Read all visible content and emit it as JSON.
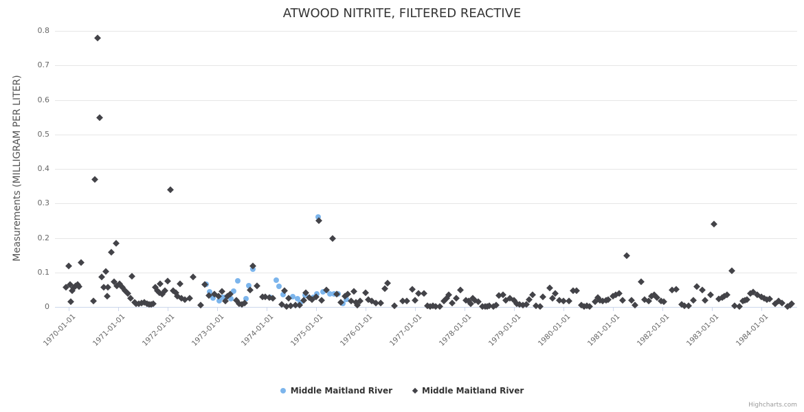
{
  "title": "ATWOOD NITRITE, FILTERED REACTIVE",
  "credit": "Highcharts.com",
  "y_axis": {
    "title": "Measurements (MILLIGRAM PER LITER)",
    "ticks": [
      "0",
      "0.1",
      "0.2",
      "0.3",
      "0.4",
      "0.5",
      "0.6",
      "0.7",
      "0.8"
    ]
  },
  "x_axis": {
    "tick_labels": [
      "1970-01-01",
      "1971-01-01",
      "1972-01-01",
      "1973-01-01",
      "1974-01-01",
      "1975-01-01",
      "1976-01-01",
      "1977-01-01",
      "1978-01-01",
      "1979-01-01",
      "1980-01-01",
      "1981-01-01",
      "1982-01-01",
      "1983-01-01",
      "1984-01-01"
    ]
  },
  "legend": [
    {
      "name": "Middle Maitland River",
      "marker": "circle",
      "color": "#7cb5ec"
    },
    {
      "name": "Middle Maitland River",
      "marker": "diamond",
      "color": "#434348"
    }
  ],
  "chart_data": {
    "type": "scatter",
    "title": "ATWOOD NITRITE, FILTERED REACTIVE",
    "xlabel": "",
    "ylabel": "Measurements (MILLIGRAM PER LITER)",
    "ylim": [
      0,
      0.8
    ],
    "x_range": [
      "1969-10",
      "1985-01"
    ],
    "grid": "horizontal",
    "legend_position": "bottom-center",
    "series": [
      {
        "name": "Middle Maitland River",
        "marker": "circle",
        "color": "#7cb5ec",
        "points": [
          [
            "1972-10-10",
            0.065
          ],
          [
            "1972-11-05",
            0.044
          ],
          [
            "1972-12-01",
            0.026
          ],
          [
            "1973-01-15",
            0.018
          ],
          [
            "1973-02-10",
            0.028
          ],
          [
            "1973-03-01",
            0.028
          ],
          [
            "1973-04-10",
            0.024
          ],
          [
            "1973-05-01",
            0.046
          ],
          [
            "1973-06-01",
            0.075
          ],
          [
            "1973-08-01",
            0.024
          ],
          [
            "1973-08-20",
            0.062
          ],
          [
            "1973-09-20",
            0.11
          ],
          [
            "1974-01-25",
            0.028
          ],
          [
            "1974-03-10",
            0.078
          ],
          [
            "1974-04-01",
            0.06
          ],
          [
            "1974-05-01",
            0.036
          ],
          [
            "1974-07-10",
            0.03
          ],
          [
            "1974-08-15",
            0.024
          ],
          [
            "1974-09-05",
            0.012
          ],
          [
            "1974-10-10",
            0.034
          ],
          [
            "1974-12-10",
            0.028
          ],
          [
            "1975-01-05",
            0.038
          ],
          [
            "1975-01-15",
            0.26
          ],
          [
            "1975-02-20",
            0.044
          ],
          [
            "1975-04-10",
            0.038
          ],
          [
            "1975-05-10",
            0.038
          ],
          [
            "1975-06-10",
            0.038
          ],
          [
            "1975-07-15",
            0.01
          ],
          [
            "1975-08-10",
            0.022
          ]
        ]
      },
      {
        "name": "Middle Maitland River",
        "marker": "diamond",
        "color": "#434348",
        "points": [
          [
            "1969-12-10",
            0.058
          ],
          [
            "1970-01-03",
            0.12
          ],
          [
            "1970-01-10",
            0.066
          ],
          [
            "1970-01-18",
            0.016
          ],
          [
            "1970-01-26",
            0.048
          ],
          [
            "1970-02-08",
            0.056
          ],
          [
            "1970-02-20",
            0.062
          ],
          [
            "1970-03-05",
            0.066
          ],
          [
            "1970-03-18",
            0.06
          ],
          [
            "1970-04-01",
            0.13
          ],
          [
            "1970-07-01",
            0.018
          ],
          [
            "1970-07-10",
            0.37
          ],
          [
            "1970-08-01",
            0.78
          ],
          [
            "1970-08-15",
            0.55
          ],
          [
            "1970-09-01",
            0.088
          ],
          [
            "1970-09-15",
            0.058
          ],
          [
            "1970-10-01",
            0.103
          ],
          [
            "1970-10-10",
            0.032
          ],
          [
            "1970-10-15",
            0.058
          ],
          [
            "1970-11-10",
            0.16
          ],
          [
            "1970-12-01",
            0.074
          ],
          [
            "1970-12-15",
            0.185
          ],
          [
            "1970-12-20",
            0.062
          ],
          [
            "1971-01-10",
            0.068
          ],
          [
            "1971-02-01",
            0.058
          ],
          [
            "1971-02-20",
            0.048
          ],
          [
            "1971-03-10",
            0.04
          ],
          [
            "1971-04-01",
            0.026
          ],
          [
            "1971-04-10",
            0.09
          ],
          [
            "1971-05-01",
            0.014
          ],
          [
            "1971-05-10",
            0.01
          ],
          [
            "1971-06-01",
            0.01
          ],
          [
            "1971-06-20",
            0.012
          ],
          [
            "1971-07-10",
            0.014
          ],
          [
            "1971-08-01",
            0.01
          ],
          [
            "1971-08-15",
            0.008
          ],
          [
            "1971-09-01",
            0.008
          ],
          [
            "1971-09-15",
            0.01
          ],
          [
            "1971-10-01",
            0.058
          ],
          [
            "1971-10-15",
            0.048
          ],
          [
            "1971-11-01",
            0.042
          ],
          [
            "1971-11-08",
            0.068
          ],
          [
            "1971-11-20",
            0.038
          ],
          [
            "1971-12-10",
            0.048
          ],
          [
            "1972-01-01",
            0.075
          ],
          [
            "1972-01-20",
            0.34
          ],
          [
            "1972-02-10",
            0.048
          ],
          [
            "1972-03-01",
            0.042
          ],
          [
            "1972-03-12",
            0.032
          ],
          [
            "1972-04-01",
            0.068
          ],
          [
            "1972-04-10",
            0.026
          ],
          [
            "1972-05-05",
            0.022
          ],
          [
            "1972-06-10",
            0.026
          ],
          [
            "1972-07-05",
            0.087
          ],
          [
            "1972-09-01",
            0.006
          ],
          [
            "1972-10-01",
            0.065
          ],
          [
            "1972-11-01",
            0.034
          ],
          [
            "1972-12-10",
            0.038
          ],
          [
            "1973-01-10",
            0.032
          ],
          [
            "1973-02-05",
            0.046
          ],
          [
            "1973-03-01",
            0.018
          ],
          [
            "1973-03-15",
            0.032
          ],
          [
            "1973-04-05",
            0.038
          ],
          [
            "1973-05-20",
            0.02
          ],
          [
            "1973-06-10",
            0.01
          ],
          [
            "1973-07-01",
            0.008
          ],
          [
            "1973-07-20",
            0.012
          ],
          [
            "1973-09-01",
            0.05
          ],
          [
            "1973-09-20",
            0.12
          ],
          [
            "1973-10-20",
            0.062
          ],
          [
            "1973-12-01",
            0.03
          ],
          [
            "1973-12-20",
            0.03
          ],
          [
            "1974-01-20",
            0.028
          ],
          [
            "1974-02-15",
            0.026
          ],
          [
            "1974-04-20",
            0.008
          ],
          [
            "1974-05-10",
            0.048
          ],
          [
            "1974-05-25",
            0.001
          ],
          [
            "1974-06-10",
            0.026
          ],
          [
            "1974-06-25",
            0.004
          ],
          [
            "1974-08-01",
            0.006
          ],
          [
            "1974-09-01",
            0.006
          ],
          [
            "1974-10-01",
            0.02
          ],
          [
            "1974-10-15",
            0.042
          ],
          [
            "1974-11-10",
            0.028
          ],
          [
            "1974-12-01",
            0.022
          ],
          [
            "1975-01-01",
            0.03
          ],
          [
            "1975-01-20",
            0.25
          ],
          [
            "1975-02-10",
            0.02
          ],
          [
            "1975-03-15",
            0.05
          ],
          [
            "1975-05-01",
            0.2
          ],
          [
            "1975-06-01",
            0.038
          ],
          [
            "1975-07-01",
            0.014
          ],
          [
            "1975-08-01",
            0.032
          ],
          [
            "1975-08-20",
            0.038
          ],
          [
            "1975-09-15",
            0.018
          ],
          [
            "1975-10-05",
            0.046
          ],
          [
            "1975-10-20",
            0.014
          ],
          [
            "1975-11-01",
            0.006
          ],
          [
            "1975-11-20",
            0.018
          ],
          [
            "1976-01-01",
            0.042
          ],
          [
            "1976-01-20",
            0.022
          ],
          [
            "1976-02-15",
            0.018
          ],
          [
            "1976-03-15",
            0.012
          ],
          [
            "1976-04-20",
            0.012
          ],
          [
            "1976-05-20",
            0.054
          ],
          [
            "1976-06-10",
            0.07
          ],
          [
            "1976-08-01",
            0.004
          ],
          [
            "1976-10-01",
            0.018
          ],
          [
            "1976-11-01",
            0.018
          ],
          [
            "1976-12-10",
            0.052
          ],
          [
            "1977-01-01",
            0.02
          ],
          [
            "1977-01-25",
            0.04
          ],
          [
            "1977-03-05",
            0.04
          ],
          [
            "1977-04-01",
            0.004
          ],
          [
            "1977-04-20",
            0.002
          ],
          [
            "1977-05-10",
            0.004
          ],
          [
            "1977-06-01",
            0.002
          ],
          [
            "1977-07-01",
            0.001
          ],
          [
            "1977-08-01",
            0.018
          ],
          [
            "1977-08-20",
            0.026
          ],
          [
            "1977-09-05",
            0.036
          ],
          [
            "1977-10-01",
            0.012
          ],
          [
            "1977-11-01",
            0.026
          ],
          [
            "1977-12-01",
            0.05
          ],
          [
            "1978-01-10",
            0.02
          ],
          [
            "1978-02-01",
            0.018
          ],
          [
            "1978-02-15",
            0.01
          ],
          [
            "1978-03-01",
            0.026
          ],
          [
            "1978-03-15",
            0.02
          ],
          [
            "1978-04-10",
            0.016
          ],
          [
            "1978-05-10",
            0.002
          ],
          [
            "1978-06-01",
            0.001
          ],
          [
            "1978-06-15",
            0.002
          ],
          [
            "1978-07-01",
            0.004
          ],
          [
            "1978-08-01",
            0.001
          ],
          [
            "1978-08-20",
            0.006
          ],
          [
            "1978-09-10",
            0.034
          ],
          [
            "1978-10-10",
            0.036
          ],
          [
            "1978-11-01",
            0.02
          ],
          [
            "1978-12-01",
            0.026
          ],
          [
            "1979-01-01",
            0.02
          ],
          [
            "1979-01-20",
            0.01
          ],
          [
            "1979-02-10",
            0.008
          ],
          [
            "1979-03-05",
            0.006
          ],
          [
            "1979-04-01",
            0.008
          ],
          [
            "1979-04-20",
            0.022
          ],
          [
            "1979-05-15",
            0.036
          ],
          [
            "1979-06-10",
            0.004
          ],
          [
            "1979-07-10",
            0.002
          ],
          [
            "1979-08-01",
            0.03
          ],
          [
            "1979-09-20",
            0.056
          ],
          [
            "1979-10-10",
            0.026
          ],
          [
            "1979-11-01",
            0.04
          ],
          [
            "1979-12-01",
            0.02
          ],
          [
            "1980-01-01",
            0.018
          ],
          [
            "1980-02-10",
            0.018
          ],
          [
            "1980-03-10",
            0.048
          ],
          [
            "1980-04-05",
            0.048
          ],
          [
            "1980-05-10",
            0.006
          ],
          [
            "1980-06-01",
            0.002
          ],
          [
            "1980-06-20",
            0.004
          ],
          [
            "1980-07-10",
            0.002
          ],
          [
            "1980-08-20",
            0.016
          ],
          [
            "1980-09-10",
            0.028
          ],
          [
            "1980-09-25",
            0.02
          ],
          [
            "1980-10-15",
            0.018
          ],
          [
            "1980-11-10",
            0.02
          ],
          [
            "1980-11-25",
            0.022
          ],
          [
            "1981-01-01",
            0.032
          ],
          [
            "1981-01-20",
            0.036
          ],
          [
            "1981-02-15",
            0.04
          ],
          [
            "1981-03-10",
            0.02
          ],
          [
            "1981-04-10",
            0.15
          ],
          [
            "1981-05-15",
            0.02
          ],
          [
            "1981-06-10",
            0.006
          ],
          [
            "1981-07-25",
            0.074
          ],
          [
            "1981-08-20",
            0.022
          ],
          [
            "1981-09-20",
            0.018
          ],
          [
            "1981-10-10",
            0.032
          ],
          [
            "1981-11-01",
            0.036
          ],
          [
            "1981-11-20",
            0.028
          ],
          [
            "1981-12-20",
            0.018
          ],
          [
            "1982-01-10",
            0.016
          ],
          [
            "1982-03-10",
            0.05
          ],
          [
            "1982-04-10",
            0.052
          ],
          [
            "1982-05-20",
            0.008
          ],
          [
            "1982-06-10",
            0.004
          ],
          [
            "1982-07-10",
            0.004
          ],
          [
            "1982-08-15",
            0.02
          ],
          [
            "1982-09-10",
            0.06
          ],
          [
            "1982-10-20",
            0.05
          ],
          [
            "1982-11-10",
            0.02
          ],
          [
            "1982-12-20",
            0.036
          ],
          [
            "1983-01-15",
            0.24
          ],
          [
            "1983-02-20",
            0.024
          ],
          [
            "1983-03-15",
            0.028
          ],
          [
            "1983-04-01",
            0.032
          ],
          [
            "1983-04-20",
            0.036
          ],
          [
            "1983-05-25",
            0.105
          ],
          [
            "1983-06-15",
            0.004
          ],
          [
            "1983-07-20",
            0.002
          ],
          [
            "1983-08-15",
            0.018
          ],
          [
            "1983-09-01",
            0.02
          ],
          [
            "1983-09-15",
            0.022
          ],
          [
            "1983-10-10",
            0.04
          ],
          [
            "1983-11-01",
            0.044
          ],
          [
            "1983-12-01",
            0.036
          ],
          [
            "1984-01-01",
            0.03
          ],
          [
            "1984-01-20",
            0.026
          ],
          [
            "1984-02-10",
            0.022
          ],
          [
            "1984-03-01",
            0.024
          ],
          [
            "1984-04-10",
            0.01
          ],
          [
            "1984-05-05",
            0.018
          ],
          [
            "1984-06-01",
            0.012
          ],
          [
            "1984-07-10",
            0.002
          ],
          [
            "1984-08-01",
            0.006
          ],
          [
            "1984-08-10",
            0.01
          ]
        ]
      }
    ]
  }
}
